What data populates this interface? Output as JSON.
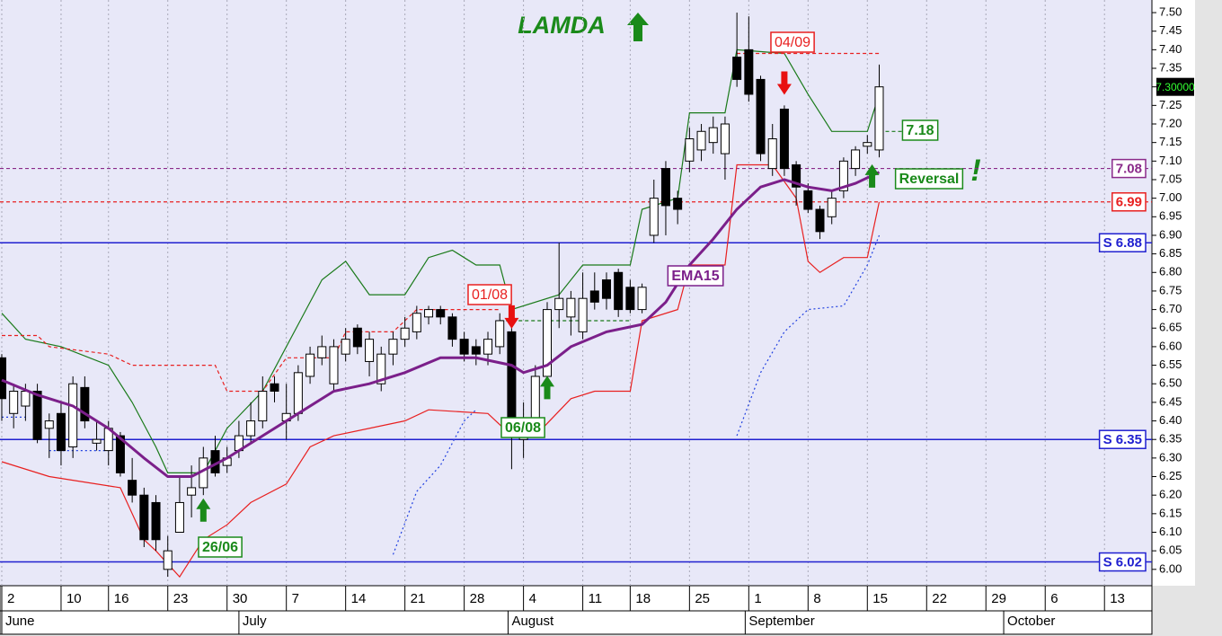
{
  "chart_data": {
    "type": "candlestick",
    "title": "LAMDA",
    "xlim": [
      -0.15,
      97
    ],
    "xticks": [
      {
        "value": 0,
        "label": "2"
      },
      {
        "value": 5,
        "label": "10"
      },
      {
        "value": 9,
        "label": "16"
      },
      {
        "value": 14,
        "label": "23"
      },
      {
        "value": 19,
        "label": "30"
      },
      {
        "value": 24,
        "label": "7"
      },
      {
        "value": 29,
        "label": "14"
      },
      {
        "value": 34,
        "label": "21"
      },
      {
        "value": 39,
        "label": "28"
      },
      {
        "value": 44,
        "label": "4"
      },
      {
        "value": 49,
        "label": "11"
      },
      {
        "value": 53,
        "label": "18"
      },
      {
        "value": 58,
        "label": "25"
      },
      {
        "value": 63,
        "label": "1"
      },
      {
        "value": 68,
        "label": "8"
      },
      {
        "value": 73,
        "label": "15"
      },
      {
        "value": 78,
        "label": "22"
      },
      {
        "value": 83,
        "label": "29"
      },
      {
        "value": 88,
        "label": "6"
      },
      {
        "value": 93,
        "label": "13"
      }
    ],
    "month_ticks": [
      {
        "value": 0,
        "label": "June"
      },
      {
        "value": 20,
        "label": "July"
      },
      {
        "value": 42.7,
        "label": "August"
      },
      {
        "value": 62.7,
        "label": "September"
      },
      {
        "value": 84.5,
        "label": "October"
      }
    ],
    "ylim": [
      5.956,
      7.534
    ],
    "yticks": [
      {
        "value": 6.0,
        "label": "6.00"
      },
      {
        "value": 6.05,
        "label": "6.05"
      },
      {
        "value": 6.1,
        "label": "6.10"
      },
      {
        "value": 6.15,
        "label": "6.15"
      },
      {
        "value": 6.2,
        "label": "6.20"
      },
      {
        "value": 6.25,
        "label": "6.25"
      },
      {
        "value": 6.3,
        "label": "6.30"
      },
      {
        "value": 6.35,
        "label": "6.35"
      },
      {
        "value": 6.4,
        "label": "6.40"
      },
      {
        "value": 6.45,
        "label": "6.45"
      },
      {
        "value": 6.5,
        "label": "6.50"
      },
      {
        "value": 6.55,
        "label": "6.55"
      },
      {
        "value": 6.6,
        "label": "6.60"
      },
      {
        "value": 6.65,
        "label": "6.65"
      },
      {
        "value": 6.7,
        "label": "6.70"
      },
      {
        "value": 6.75,
        "label": "6.75"
      },
      {
        "value": 6.8,
        "label": "6.80"
      },
      {
        "value": 6.85,
        "label": "6.85"
      },
      {
        "value": 6.9,
        "label": "6.90"
      },
      {
        "value": 6.95,
        "label": "6.95"
      },
      {
        "value": 7.0,
        "label": "7.00"
      },
      {
        "value": 7.05,
        "label": "7.05"
      },
      {
        "value": 7.1,
        "label": "7.10"
      },
      {
        "value": 7.15,
        "label": "7.15"
      },
      {
        "value": 7.2,
        "label": "7.20"
      },
      {
        "value": 7.25,
        "label": "7.25"
      },
      {
        "value": 7.3,
        "label": "7.30"
      },
      {
        "value": 7.35,
        "label": "7.35"
      },
      {
        "value": 7.4,
        "label": "7.40"
      },
      {
        "value": 7.45,
        "label": "7.45"
      },
      {
        "value": 7.5,
        "label": "7.50"
      }
    ],
    "grid": true,
    "candles": {
      "x": [
        0,
        1,
        2,
        3,
        4,
        5,
        6,
        7,
        8,
        9,
        10,
        11,
        12,
        13,
        14,
        15,
        16,
        17,
        18,
        19,
        20,
        21,
        22,
        23,
        24,
        25,
        26,
        27,
        28,
        29,
        30,
        31,
        32,
        33,
        34,
        35,
        36,
        37,
        38,
        39,
        40,
        41,
        42,
        43,
        44,
        45,
        46,
        47,
        48,
        49,
        50,
        51,
        52,
        53,
        54,
        55,
        56,
        57,
        58,
        59,
        60,
        61,
        62,
        63,
        64,
        65,
        66,
        67,
        68,
        69,
        70,
        71,
        72,
        73,
        74
      ],
      "open": [
        6.57,
        6.42,
        6.44,
        6.48,
        6.38,
        6.42,
        6.33,
        6.49,
        6.34,
        6.32,
        6.36,
        6.24,
        6.2,
        6.18,
        6.0,
        6.1,
        6.2,
        6.22,
        6.32,
        6.28,
        6.32,
        6.36,
        6.4,
        6.5,
        6.4,
        6.42,
        6.52,
        6.57,
        6.5,
        6.58,
        6.65,
        6.56,
        6.5,
        6.58,
        6.62,
        6.64,
        6.68,
        6.7,
        6.68,
        6.62,
        6.6,
        6.58,
        6.6,
        6.64,
        6.35,
        6.4,
        6.52,
        6.7,
        6.68,
        6.64,
        6.75,
        6.78,
        6.8,
        6.76,
        6.7,
        6.9,
        7.08,
        7.0,
        7.1,
        7.13,
        7.15,
        7.12,
        7.38,
        7.4,
        7.32,
        7.08,
        7.24,
        7.09,
        7.02,
        6.97,
        6.95,
        7.02,
        7.08,
        7.14,
        7.13
      ],
      "high": [
        6.58,
        6.5,
        6.5,
        6.5,
        6.42,
        6.45,
        6.52,
        6.52,
        6.4,
        6.4,
        6.37,
        6.3,
        6.22,
        6.2,
        6.09,
        6.25,
        6.28,
        6.33,
        6.36,
        6.33,
        6.4,
        6.45,
        6.52,
        6.52,
        6.5,
        6.55,
        6.6,
        6.63,
        6.62,
        6.65,
        6.66,
        6.64,
        6.6,
        6.64,
        6.68,
        6.71,
        6.71,
        6.71,
        6.69,
        6.64,
        6.62,
        6.64,
        6.69,
        6.65,
        6.45,
        6.55,
        6.72,
        6.88,
        6.75,
        6.8,
        6.8,
        6.8,
        6.81,
        6.78,
        6.77,
        7.05,
        7.1,
        7.02,
        7.19,
        7.2,
        7.22,
        7.22,
        7.5,
        7.49,
        7.33,
        7.2,
        7.25,
        7.1,
        7.04,
        6.98,
        7.02,
        7.11,
        7.14,
        7.17,
        7.36
      ],
      "low": [
        6.4,
        6.38,
        6.4,
        6.34,
        6.3,
        6.28,
        6.3,
        6.38,
        6.32,
        6.28,
        6.25,
        6.18,
        6.06,
        6.05,
        5.98,
        6.1,
        6.14,
        6.2,
        6.25,
        6.26,
        6.3,
        6.34,
        6.38,
        6.45,
        6.35,
        6.4,
        6.5,
        6.55,
        6.48,
        6.56,
        6.58,
        6.52,
        6.48,
        6.55,
        6.6,
        6.62,
        6.66,
        6.66,
        6.6,
        6.56,
        6.55,
        6.55,
        6.58,
        6.27,
        6.3,
        6.38,
        6.48,
        6.65,
        6.63,
        6.62,
        6.7,
        6.7,
        6.68,
        6.69,
        6.69,
        6.88,
        6.9,
        6.93,
        7.07,
        7.1,
        7.12,
        7.05,
        7.3,
        7.26,
        7.1,
        7.06,
        7.06,
        6.98,
        6.96,
        6.89,
        6.93,
        7.0,
        7.06,
        7.12,
        7.11
      ],
      "close": [
        6.46,
        6.48,
        6.48,
        6.35,
        6.4,
        6.32,
        6.5,
        6.4,
        6.35,
        6.38,
        6.26,
        6.2,
        6.08,
        6.08,
        6.05,
        6.18,
        6.22,
        6.3,
        6.26,
        6.3,
        6.36,
        6.4,
        6.48,
        6.48,
        6.42,
        6.53,
        6.58,
        6.6,
        6.6,
        6.62,
        6.6,
        6.62,
        6.58,
        6.62,
        6.65,
        6.69,
        6.7,
        6.68,
        6.62,
        6.58,
        6.58,
        6.62,
        6.67,
        6.4,
        6.4,
        6.52,
        6.7,
        6.73,
        6.73,
        6.73,
        6.72,
        6.73,
        6.7,
        6.7,
        6.76,
        7.0,
        6.98,
        6.97,
        7.16,
        7.18,
        7.19,
        7.2,
        7.32,
        7.28,
        7.12,
        7.16,
        7.08,
        7.03,
        6.97,
        6.91,
        7.0,
        7.1,
        7.13,
        7.15,
        7.3
      ]
    },
    "series": [
      {
        "name": "EMA15",
        "color": "#7b1f8a",
        "x": [
          0,
          3,
          6,
          9,
          12,
          14,
          16,
          19,
          22,
          25,
          28,
          31,
          34,
          37,
          40,
          43,
          44,
          46,
          48,
          51,
          54,
          56,
          58,
          60,
          62,
          64,
          66,
          68,
          70,
          72,
          74
        ],
        "values": [
          6.51,
          6.47,
          6.44,
          6.38,
          6.3,
          6.25,
          6.25,
          6.3,
          6.36,
          6.42,
          6.48,
          6.5,
          6.53,
          6.57,
          6.57,
          6.55,
          6.53,
          6.55,
          6.6,
          6.64,
          6.66,
          6.72,
          6.82,
          6.89,
          6.97,
          7.03,
          7.05,
          7.03,
          7.02,
          7.04,
          7.07
        ]
      }
    ],
    "lines": [
      {
        "color": "#1a7a1a",
        "style": "solid",
        "x": [
          0,
          2,
          5,
          9,
          11,
          13,
          14,
          17,
          19,
          22,
          25,
          27,
          29,
          31,
          34,
          36,
          38,
          40,
          42,
          43,
          47,
          49,
          53,
          54,
          57,
          58,
          61,
          62,
          66,
          68,
          70,
          73,
          74
        ],
        "values": [
          6.69,
          6.62,
          6.6,
          6.55,
          6.45,
          6.33,
          6.26,
          6.26,
          6.38,
          6.48,
          6.66,
          6.78,
          6.83,
          6.74,
          6.74,
          6.84,
          6.86,
          6.82,
          6.82,
          6.7,
          6.74,
          6.82,
          6.82,
          6.97,
          7.0,
          7.23,
          7.23,
          7.4,
          7.39,
          7.28,
          7.18,
          7.18,
          7.28
        ]
      },
      {
        "color": "#e82020",
        "style": "solid",
        "x": [
          0,
          4,
          10,
          11,
          12,
          13,
          15,
          17,
          19,
          21,
          24,
          26,
          28,
          34,
          36,
          41,
          43,
          45,
          48,
          50,
          53,
          54,
          57,
          58,
          61,
          62,
          65,
          67,
          68,
          69,
          71,
          73,
          74
        ],
        "values": [
          6.29,
          6.25,
          6.22,
          6.15,
          6.08,
          6.05,
          5.98,
          6.08,
          6.12,
          6.18,
          6.23,
          6.33,
          6.36,
          6.4,
          6.43,
          6.42,
          6.36,
          6.36,
          6.46,
          6.48,
          6.48,
          6.67,
          6.7,
          6.82,
          6.82,
          7.09,
          7.09,
          7.0,
          6.83,
          6.8,
          6.84,
          6.84,
          6.99
        ]
      },
      {
        "color": "#2040e0",
        "style": "dotted",
        "x": [
          0,
          2,
          3,
          4,
          9,
          10,
          33,
          35,
          37,
          39,
          40,
          41,
          62,
          64,
          66,
          68,
          71,
          73,
          74
        ],
        "values": [
          6.41,
          6.41,
          null,
          6.32,
          6.32,
          null,
          6.04,
          6.21,
          6.28,
          6.4,
          6.43,
          null,
          6.36,
          6.53,
          6.64,
          6.7,
          6.71,
          6.82,
          6.9
        ]
      },
      {
        "color": "#e82020",
        "style": "dashed",
        "x": [
          0,
          3,
          4,
          9,
          11,
          18,
          19,
          22,
          24,
          28,
          29,
          33,
          35,
          42,
          43,
          62,
          74
        ],
        "values": [
          6.63,
          6.63,
          6.6,
          6.58,
          6.55,
          6.55,
          6.48,
          6.48,
          6.57,
          6.57,
          6.64,
          6.64,
          6.7,
          6.7,
          null,
          7.39,
          7.39
        ]
      },
      {
        "color": "#1a7a1a",
        "style": "dashed",
        "x": [
          42,
          53,
          54,
          74,
          77
        ],
        "values": [
          6.67,
          6.67,
          null,
          7.18,
          7.18
        ]
      }
    ],
    "levels": [
      {
        "value": 7.08,
        "color": "#8a2a8a",
        "style": "dashed"
      },
      {
        "value": 6.99,
        "color": "#e82020",
        "style": "dashed"
      },
      {
        "value": 6.88,
        "label": "S 6.88",
        "color": "#2020d0",
        "style": "solid"
      },
      {
        "value": 6.35,
        "label": "S 6.35",
        "color": "#2020d0",
        "style": "solid"
      },
      {
        "value": 6.02,
        "label": "S 6.02",
        "color": "#2020d0",
        "style": "solid"
      }
    ],
    "last_price": {
      "value": 7.3,
      "label": "7.30000"
    },
    "signals": [
      {
        "x": 17,
        "y": 6.16,
        "dir": "up",
        "color": "#1a8a1a"
      },
      {
        "x": 43,
        "y": 6.68,
        "dir": "down",
        "color": "#e81010"
      },
      {
        "x": 46,
        "y": 6.49,
        "dir": "up",
        "color": "#1a8a1a"
      },
      {
        "x": 66,
        "y": 7.31,
        "dir": "down",
        "color": "#e81010"
      },
      {
        "x": 73.4,
        "y": 7.06,
        "dir": "up",
        "color": "#1a8a1a"
      }
    ],
    "annotations": [
      {
        "text": "04/09",
        "color": "#e82020"
      },
      {
        "text": "01/08",
        "color": "#e82020"
      },
      {
        "text": "06/08",
        "color": "#1a8a1a"
      },
      {
        "text": "26/06",
        "color": "#1a8a1a"
      },
      {
        "text": "EMA15",
        "color": "#7b1f8a"
      },
      {
        "text": "Reversal",
        "color": "#1a8a1a"
      },
      {
        "text": "7.18",
        "color": "#1a8a1a"
      }
    ]
  }
}
